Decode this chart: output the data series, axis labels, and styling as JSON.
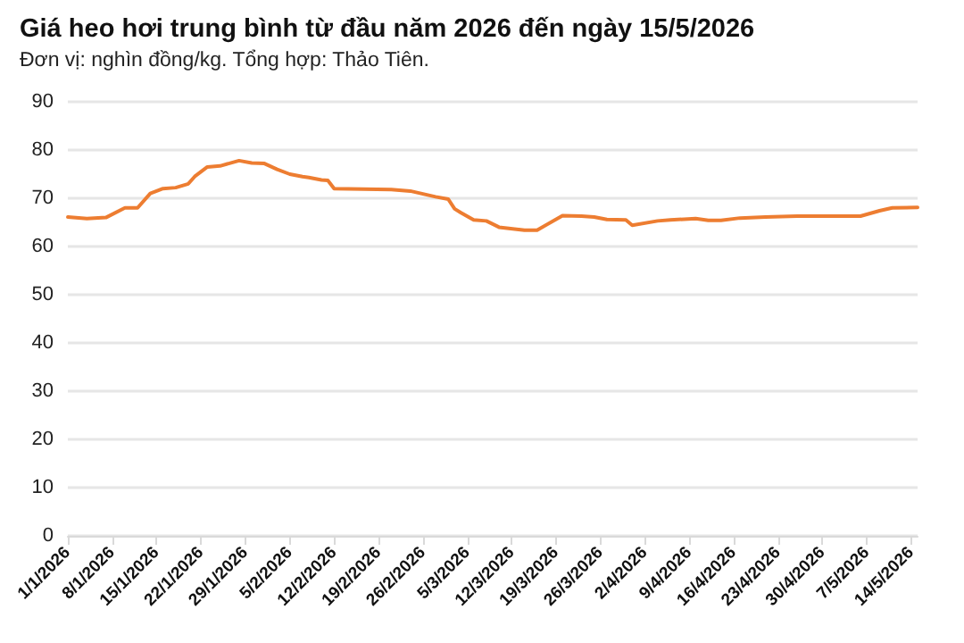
{
  "chart_data": {
    "type": "line",
    "title": "Giá heo hơi trung bình từ đầu năm 2026 đến ngày 15/5/2026",
    "subtitle": "Đơn vị: nghìn đồng/kg. Tổng hợp: Thảo Tiên.",
    "x": [
      "2026-01-01",
      "2026-01-04",
      "2026-01-07",
      "2026-01-10",
      "2026-01-12",
      "2026-01-14",
      "2026-01-16",
      "2026-01-18",
      "2026-01-20",
      "2026-01-21",
      "2026-01-23",
      "2026-01-25",
      "2026-01-28",
      "2026-01-30",
      "2026-02-01",
      "2026-02-03",
      "2026-02-05",
      "2026-02-07",
      "2026-02-08",
      "2026-02-10",
      "2026-02-11",
      "2026-02-12",
      "2026-02-21",
      "2026-02-24",
      "2026-02-28",
      "2026-03-02",
      "2026-03-03",
      "2026-03-04",
      "2026-03-06",
      "2026-03-08",
      "2026-03-10",
      "2026-03-14",
      "2026-03-16",
      "2026-03-20",
      "2026-03-23",
      "2026-03-25",
      "2026-03-27",
      "2026-03-30",
      "2026-03-31",
      "2026-04-04",
      "2026-04-06",
      "2026-04-10",
      "2026-04-12",
      "2026-04-14",
      "2026-04-17",
      "2026-04-21",
      "2026-04-26",
      "2026-05-06",
      "2026-05-09",
      "2026-05-11",
      "2026-05-15"
    ],
    "series": [
      {
        "color": "#ed7d31",
        "values": [
          66.1,
          65.8,
          66.0,
          68.0,
          68.0,
          71.0,
          72.0,
          72.2,
          73.0,
          74.5,
          76.5,
          76.7,
          77.8,
          77.3,
          77.2,
          76.0,
          75.0,
          74.5,
          74.3,
          73.8,
          73.7,
          72.0,
          71.8,
          71.5,
          70.3,
          69.8,
          67.8,
          67.0,
          65.5,
          65.3,
          64.0,
          63.4,
          63.4,
          66.4,
          66.3,
          66.1,
          65.6,
          65.5,
          64.4,
          65.3,
          65.5,
          65.8,
          65.4,
          65.4,
          65.9,
          66.1,
          66.3,
          66.3,
          67.4,
          68.0,
          68.1
        ]
      }
    ],
    "xlim": [
      "2026-01-01",
      "2026-05-15"
    ],
    "xticks": [
      {
        "value": "2026-01-01",
        "label": "1/1/2026"
      },
      {
        "value": "2026-01-08",
        "label": "8/1/2026"
      },
      {
        "value": "2026-01-15",
        "label": "15/1/2026"
      },
      {
        "value": "2026-01-22",
        "label": "22/1/2026"
      },
      {
        "value": "2026-01-29",
        "label": "29/1/2026"
      },
      {
        "value": "2026-02-05",
        "label": "5/2/2026"
      },
      {
        "value": "2026-02-12",
        "label": "12/2/2026"
      },
      {
        "value": "2026-02-19",
        "label": "19/2/2026"
      },
      {
        "value": "2026-02-26",
        "label": "26/2/2026"
      },
      {
        "value": "2026-03-05",
        "label": "5/3/2026"
      },
      {
        "value": "2026-03-12",
        "label": "12/3/2026"
      },
      {
        "value": "2026-03-19",
        "label": "19/3/2026"
      },
      {
        "value": "2026-03-26",
        "label": "26/3/2026"
      },
      {
        "value": "2026-04-02",
        "label": "2/4/2026"
      },
      {
        "value": "2026-04-09",
        "label": "9/4/2026"
      },
      {
        "value": "2026-04-16",
        "label": "16/4/2026"
      },
      {
        "value": "2026-04-23",
        "label": "23/4/2026"
      },
      {
        "value": "2026-04-30",
        "label": "30/4/2026"
      },
      {
        "value": "2026-05-07",
        "label": "7/5/2026"
      },
      {
        "value": "2026-05-14",
        "label": "14/5/2026"
      }
    ],
    "ylim": [
      0,
      90
    ],
    "yticks": [
      0,
      10,
      20,
      30,
      40,
      50,
      60,
      70,
      80,
      90
    ],
    "grid": "y",
    "marker": "none",
    "line_style": "solid"
  }
}
